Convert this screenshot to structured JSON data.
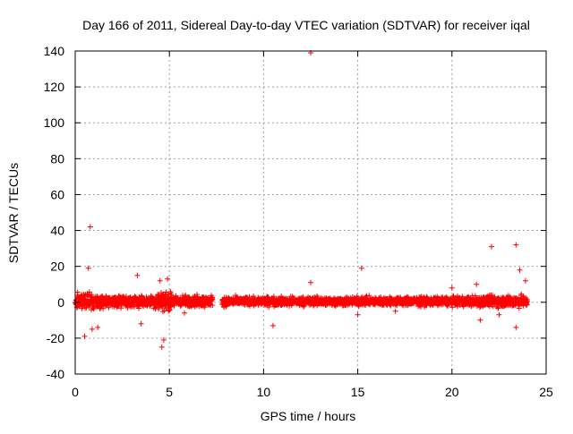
{
  "chart_data": {
    "type": "scatter",
    "title": "Day 166 of 2011, Sidereal Day-to-day VTEC variation (SDTVAR) for receiver iqal",
    "xlabel": "GPS time / hours",
    "ylabel": "SDTVAR / TECUs",
    "xlim": [
      0,
      25
    ],
    "ylim": [
      -40,
      140
    ],
    "x_ticks": [
      0,
      5,
      10,
      15,
      20,
      25
    ],
    "y_ticks": [
      -40,
      -20,
      0,
      20,
      40,
      60,
      80,
      100,
      120,
      140
    ],
    "grid": true,
    "legend": "none",
    "marker": "plus",
    "color": "#ff0000",
    "series": [
      {
        "segments": [
          {
            "x_start": 0.0,
            "x_end": 7.3,
            "center": 0.5,
            "spread": 4.5
          },
          {
            "x_start": 7.8,
            "x_end": 24.0,
            "center": 0.5,
            "spread": 3.5
          }
        ],
        "outliers": [
          {
            "x": 0.8,
            "y": 42
          },
          {
            "x": 0.7,
            "y": 19
          },
          {
            "x": 0.5,
            "y": -19
          },
          {
            "x": 0.9,
            "y": -15
          },
          {
            "x": 1.2,
            "y": -14
          },
          {
            "x": 3.3,
            "y": 15
          },
          {
            "x": 3.5,
            "y": -12
          },
          {
            "x": 4.6,
            "y": -25
          },
          {
            "x": 4.7,
            "y": -21
          },
          {
            "x": 4.5,
            "y": 12
          },
          {
            "x": 4.9,
            "y": 13
          },
          {
            "x": 5.8,
            "y": -6
          },
          {
            "x": 10.5,
            "y": -13
          },
          {
            "x": 12.5,
            "y": 139
          },
          {
            "x": 12.5,
            "y": 11
          },
          {
            "x": 15.2,
            "y": 19
          },
          {
            "x": 15.0,
            "y": -7
          },
          {
            "x": 17.0,
            "y": -5
          },
          {
            "x": 20.0,
            "y": 8
          },
          {
            "x": 21.3,
            "y": 10
          },
          {
            "x": 21.5,
            "y": -10
          },
          {
            "x": 22.1,
            "y": 31
          },
          {
            "x": 22.5,
            "y": -7
          },
          {
            "x": 23.4,
            "y": 32
          },
          {
            "x": 23.4,
            "y": -14
          },
          {
            "x": 23.6,
            "y": 18
          },
          {
            "x": 23.9,
            "y": 12
          }
        ]
      }
    ]
  }
}
